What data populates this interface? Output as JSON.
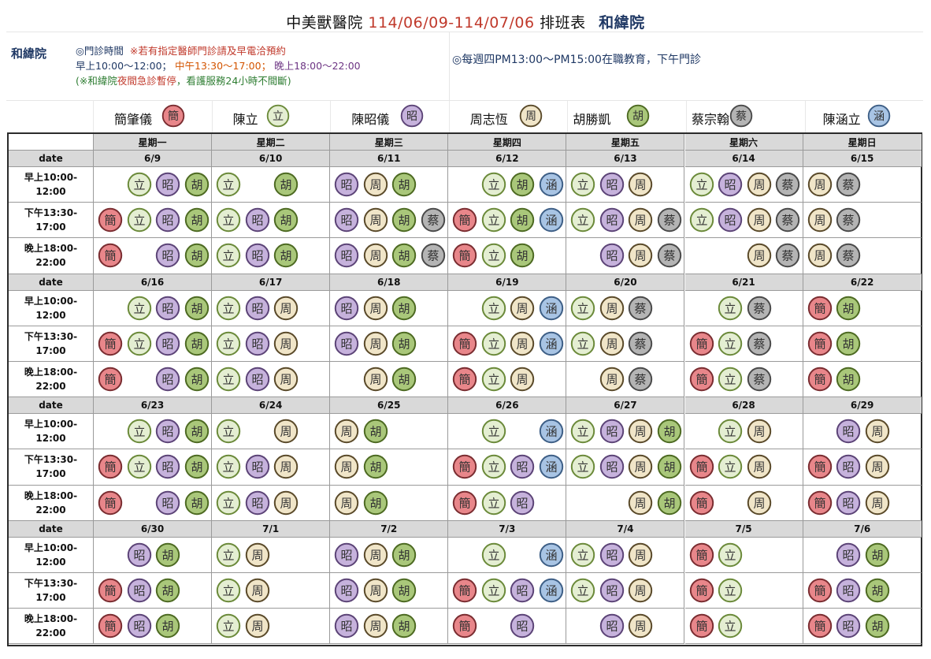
{
  "header": {
    "clinic": "中美獸醫院",
    "range": "114/06/09-114/07/06",
    "suffix": "排班表",
    "branch": "和緯院"
  },
  "info": {
    "branch_label": "和緯院",
    "hours_title": "◎門診時間",
    "notice": "※若有指定醫師門診請及早電洽預約",
    "morning": "早上10:00～12:00；",
    "noon": "中午13:30～17:00；",
    "evening": "晚上18:00～22:00",
    "emergency_a": "(※和緯院",
    "emergency_b": "夜間急診暫停",
    "emergency_c": "，看護服務24小時不間斷)",
    "weekly_note": "◎每週四PM13:00～PM15:00在職教育，下午門診"
  },
  "badge_colors": {
    "簡": {
      "fill": "#e8868a",
      "stroke": "#7a2d31"
    },
    "立": {
      "fill": "#e4eed2",
      "stroke": "#6b8a3a"
    },
    "昭": {
      "fill": "#c6b2dc",
      "stroke": "#5c4477"
    },
    "胡": {
      "fill": "#a9c77a",
      "stroke": "#4d6a22"
    },
    "周": {
      "fill": "#f0e5c8",
      "stroke": "#5a4a2a"
    },
    "涵": {
      "fill": "#a8c4e4",
      "stroke": "#3e5f86"
    },
    "蔡": {
      "fill": "#b4b4b4",
      "stroke": "#4a4a4a"
    }
  },
  "doctors": [
    {
      "name": "簡肇儀",
      "code": "簡"
    },
    {
      "name": "陳立",
      "code": "立"
    },
    {
      "name": "陳昭儀",
      "code": "昭"
    },
    {
      "name": "周志恆",
      "code": "周"
    },
    {
      "name": "胡勝凱",
      "code": "胡"
    },
    {
      "name": "蔡宗翰",
      "code": "蔡"
    },
    {
      "name": "陳涵立",
      "code": "涵"
    }
  ],
  "weekdays": [
    "星期一",
    "星期二",
    "星期三",
    "星期四",
    "星期五",
    "星期六",
    "星期日"
  ],
  "date_label": "date",
  "slot_labels": [
    [
      "早上10:00-",
      "12:00"
    ],
    [
      "下午13:30-",
      "17:00"
    ],
    [
      "晚上18:00-",
      "22:00"
    ]
  ],
  "weeks": [
    {
      "dates": [
        "6/9",
        "6/10",
        "6/11",
        "6/12",
        "6/13",
        "6/14",
        "6/15"
      ],
      "slots": [
        [
          [
            "",
            "立",
            "昭",
            "胡"
          ],
          [
            "立",
            "",
            "胡"
          ],
          [
            "昭",
            "周",
            "胡"
          ],
          [
            "",
            "立",
            "胡",
            "涵"
          ],
          [
            "立",
            "昭",
            "周"
          ],
          [
            "立",
            "昭",
            "周",
            "蔡"
          ],
          [
            "周",
            "蔡"
          ]
        ],
        [
          [
            "簡",
            "立",
            "昭",
            "胡"
          ],
          [
            "立",
            "昭",
            "胡"
          ],
          [
            "昭",
            "周",
            "胡",
            "蔡"
          ],
          [
            "簡",
            "立",
            "胡",
            "涵"
          ],
          [
            "立",
            "昭",
            "周",
            "蔡"
          ],
          [
            "立",
            "昭",
            "周",
            "蔡"
          ],
          [
            "周",
            "蔡"
          ]
        ],
        [
          [
            "簡",
            "",
            "昭",
            "胡"
          ],
          [
            "立",
            "昭",
            "胡"
          ],
          [
            "昭",
            "周",
            "胡",
            "蔡"
          ],
          [
            "簡",
            "立",
            "胡"
          ],
          [
            "",
            "昭",
            "周",
            "蔡"
          ],
          [
            "",
            "",
            "周",
            "蔡"
          ],
          [
            "周",
            "蔡"
          ]
        ]
      ]
    },
    {
      "dates": [
        "6/16",
        "6/17",
        "6/18",
        "6/19",
        "6/20",
        "6/21",
        "6/22"
      ],
      "slots": [
        [
          [
            "",
            "立",
            "昭",
            "胡"
          ],
          [
            "立",
            "昭",
            "周"
          ],
          [
            "昭",
            "周",
            "胡"
          ],
          [
            "",
            "立",
            "周",
            "涵"
          ],
          [
            "立",
            "周",
            "蔡"
          ],
          [
            "",
            "立",
            "蔡"
          ],
          [
            "簡",
            "胡"
          ]
        ],
        [
          [
            "簡",
            "立",
            "昭",
            "胡"
          ],
          [
            "立",
            "昭",
            "周"
          ],
          [
            "昭",
            "周",
            "胡"
          ],
          [
            "簡",
            "立",
            "周",
            "涵"
          ],
          [
            "立",
            "周",
            "蔡"
          ],
          [
            "簡",
            "立",
            "蔡"
          ],
          [
            "簡",
            "胡"
          ]
        ],
        [
          [
            "簡",
            "",
            "昭",
            "胡"
          ],
          [
            "立",
            "昭",
            "周"
          ],
          [
            "",
            "周",
            "胡"
          ],
          [
            "簡",
            "立",
            "周"
          ],
          [
            "",
            "周",
            "蔡"
          ],
          [
            "簡",
            "立",
            "蔡"
          ],
          [
            "簡",
            "胡"
          ]
        ]
      ]
    },
    {
      "dates": [
        "6/23",
        "6/24",
        "6/25",
        "6/26",
        "6/27",
        "6/28",
        "6/29"
      ],
      "slots": [
        [
          [
            "",
            "立",
            "昭",
            "胡"
          ],
          [
            "立",
            "",
            "周"
          ],
          [
            "周",
            "胡"
          ],
          [
            "",
            "立",
            "",
            "涵"
          ],
          [
            "立",
            "昭",
            "周",
            "胡"
          ],
          [
            "",
            "立",
            "周"
          ],
          [
            "",
            "昭",
            "周"
          ]
        ],
        [
          [
            "簡",
            "立",
            "昭",
            "胡"
          ],
          [
            "立",
            "昭",
            "周"
          ],
          [
            "周",
            "胡"
          ],
          [
            "簡",
            "立",
            "昭",
            "涵"
          ],
          [
            "立",
            "昭",
            "周",
            "胡"
          ],
          [
            "簡",
            "立",
            "周"
          ],
          [
            "簡",
            "昭",
            "周"
          ]
        ],
        [
          [
            "簡",
            "",
            "昭",
            "胡"
          ],
          [
            "立",
            "昭",
            "周"
          ],
          [
            "周",
            "胡"
          ],
          [
            "簡",
            "立",
            "昭"
          ],
          [
            "",
            "",
            "周",
            "胡"
          ],
          [
            "簡",
            "",
            "周"
          ],
          [
            "簡",
            "昭",
            "周"
          ]
        ]
      ]
    },
    {
      "dates": [
        "6/30",
        "7/1",
        "7/2",
        "7/3",
        "7/4",
        "7/5",
        "7/6"
      ],
      "slots": [
        [
          [
            "",
            "昭",
            "胡"
          ],
          [
            "立",
            "周"
          ],
          [
            "昭",
            "周",
            "胡"
          ],
          [
            "",
            "立",
            "",
            "涵"
          ],
          [
            "立",
            "昭",
            "周"
          ],
          [
            "簡",
            "立"
          ],
          [
            "",
            "昭",
            "胡"
          ]
        ],
        [
          [
            "簡",
            "昭",
            "胡"
          ],
          [
            "立",
            "周"
          ],
          [
            "昭",
            "周",
            "胡"
          ],
          [
            "簡",
            "立",
            "昭",
            "涵"
          ],
          [
            "立",
            "昭",
            "周"
          ],
          [
            "簡",
            "立"
          ],
          [
            "簡",
            "昭",
            "胡"
          ]
        ],
        [
          [
            "簡",
            "昭",
            "胡"
          ],
          [
            "立",
            "周"
          ],
          [
            "昭",
            "周",
            "胡"
          ],
          [
            "簡",
            "",
            "昭"
          ],
          [
            "",
            "昭",
            "周"
          ],
          [
            "簡",
            "立"
          ],
          [
            "簡",
            "昭",
            "胡"
          ]
        ]
      ]
    }
  ]
}
